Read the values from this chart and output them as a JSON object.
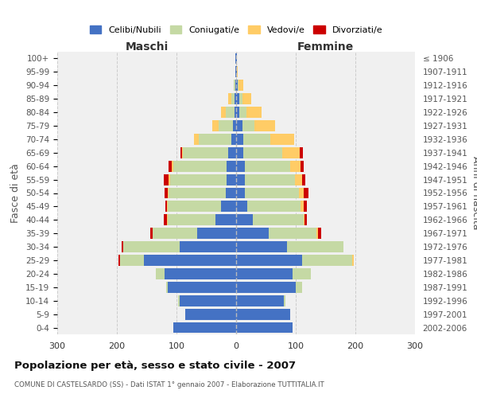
{
  "age_groups": [
    "0-4",
    "5-9",
    "10-14",
    "15-19",
    "20-24",
    "25-29",
    "30-34",
    "35-39",
    "40-44",
    "45-49",
    "50-54",
    "55-59",
    "60-64",
    "65-69",
    "70-74",
    "75-79",
    "80-84",
    "85-89",
    "90-94",
    "95-99",
    "100+"
  ],
  "birth_years": [
    "2002-2006",
    "1997-2001",
    "1992-1996",
    "1987-1991",
    "1982-1986",
    "1977-1981",
    "1972-1976",
    "1967-1971",
    "1962-1966",
    "1957-1961",
    "1952-1956",
    "1947-1951",
    "1942-1946",
    "1937-1941",
    "1932-1936",
    "1927-1931",
    "1922-1926",
    "1917-1921",
    "1912-1916",
    "1907-1911",
    "≤ 1906"
  ],
  "maschi": {
    "celibi": [
      105,
      85,
      95,
      115,
      120,
      155,
      95,
      65,
      35,
      25,
      18,
      16,
      16,
      14,
      8,
      5,
      3,
      3,
      2,
      1,
      1
    ],
    "coniugati": [
      0,
      0,
      2,
      3,
      15,
      40,
      95,
      75,
      80,
      90,
      95,
      95,
      90,
      75,
      55,
      25,
      15,
      5,
      2,
      0,
      0
    ],
    "vedovi": [
      0,
      0,
      0,
      0,
      0,
      0,
      0,
      0,
      1,
      1,
      2,
      3,
      2,
      2,
      8,
      10,
      8,
      5,
      0,
      0,
      0
    ],
    "divorziati": [
      0,
      0,
      0,
      0,
      0,
      2,
      2,
      4,
      5,
      3,
      5,
      8,
      5,
      3,
      0,
      0,
      0,
      0,
      0,
      0,
      0
    ]
  },
  "femmine": {
    "nubili": [
      95,
      90,
      80,
      100,
      95,
      110,
      85,
      55,
      28,
      18,
      15,
      14,
      15,
      12,
      12,
      10,
      5,
      5,
      2,
      1,
      1
    ],
    "coniugate": [
      0,
      0,
      2,
      10,
      30,
      85,
      95,
      80,
      85,
      90,
      90,
      85,
      75,
      65,
      45,
      20,
      12,
      5,
      2,
      0,
      0
    ],
    "vedove": [
      0,
      0,
      0,
      0,
      0,
      2,
      0,
      2,
      2,
      5,
      8,
      12,
      18,
      30,
      40,
      35,
      25,
      15,
      8,
      1,
      0
    ],
    "divorziate": [
      0,
      0,
      0,
      0,
      0,
      0,
      0,
      5,
      3,
      5,
      8,
      5,
      5,
      5,
      0,
      0,
      0,
      0,
      0,
      0,
      0
    ]
  },
  "colors": {
    "celibi": "#4472C4",
    "coniugati": "#C5D9A4",
    "vedovi": "#FFCC66",
    "divorziati": "#CC0000"
  },
  "xlim": 300,
  "title": "Popolazione per età, sesso e stato civile - 2007",
  "subtitle": "COMUNE DI CASTELSARDO (SS) - Dati ISTAT 1° gennaio 2007 - Elaborazione TUTTITALIA.IT",
  "xlabel_maschi": "Maschi",
  "xlabel_femmine": "Femmine",
  "ylabel": "Fasce di età",
  "ylabel_right": "Anni di nascita",
  "bg_color": "#ffffff",
  "plot_bg": "#f0f0f0",
  "grid_color": "#cccccc"
}
